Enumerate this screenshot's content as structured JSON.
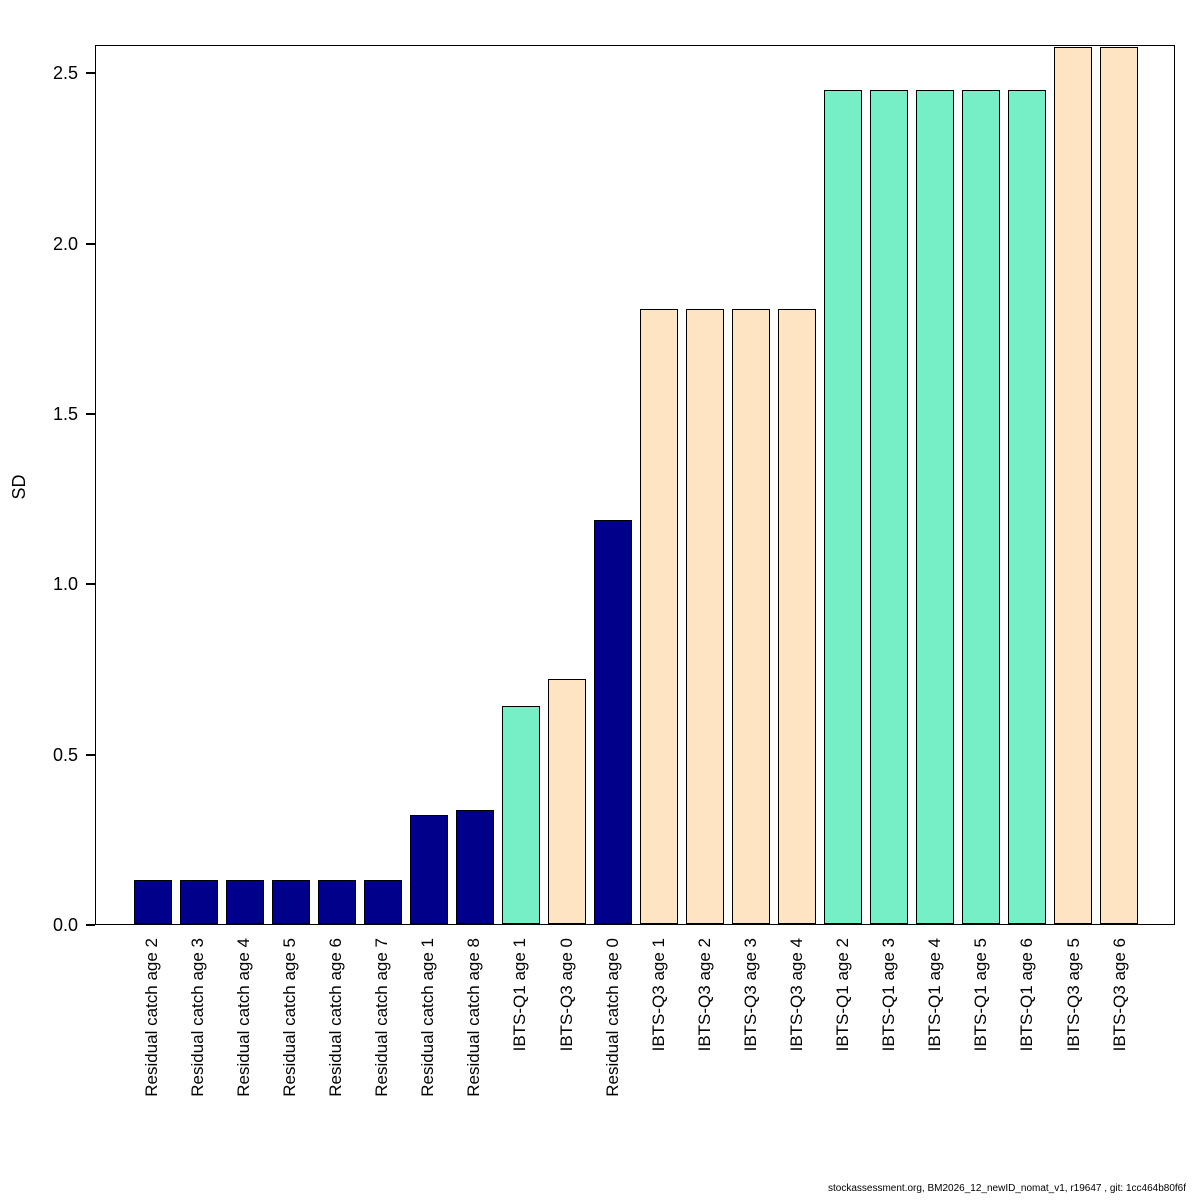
{
  "chart_data": {
    "type": "bar",
    "title": "",
    "ylabel": "SD",
    "xlabel": "",
    "ylim": [
      0,
      2.583
    ],
    "yticks": [
      0,
      0.5,
      1,
      1.5,
      2,
      2.5
    ],
    "grid": false,
    "legend_position": "none",
    "categories": [
      "Residual catch age 2",
      "Residual catch age 3",
      "Residual catch age 4",
      "Residual catch age 5",
      "Residual catch age 6",
      "Residual catch age 7",
      "Residual catch age 1",
      "Residual catch age 8",
      "IBTS-Q1 age 1",
      "IBTS-Q3 age 0",
      "Residual catch age 0",
      "IBTS-Q3 age 1",
      "IBTS-Q3 age 2",
      "IBTS-Q3 age 3",
      "IBTS-Q3 age 4",
      "IBTS-Q1 age 2",
      "IBTS-Q1 age 3",
      "IBTS-Q1 age 4",
      "IBTS-Q1 age 5",
      "IBTS-Q1 age 6",
      "IBTS-Q3 age 5",
      "IBTS-Q3 age 6"
    ],
    "values": [
      0.13,
      0.13,
      0.13,
      0.13,
      0.13,
      0.13,
      0.32,
      0.335,
      0.64,
      0.72,
      1.19,
      1.81,
      1.81,
      1.81,
      1.81,
      2.455,
      2.455,
      2.455,
      2.455,
      2.455,
      2.58,
      2.58
    ],
    "groups": [
      "residual_catch",
      "residual_catch",
      "residual_catch",
      "residual_catch",
      "residual_catch",
      "residual_catch",
      "residual_catch",
      "residual_catch",
      "ibts_q1",
      "ibts_q3",
      "residual_catch",
      "ibts_q3",
      "ibts_q3",
      "ibts_q3",
      "ibts_q3",
      "ibts_q1",
      "ibts_q1",
      "ibts_q1",
      "ibts_q1",
      "ibts_q1",
      "ibts_q3",
      "ibts_q3"
    ],
    "colors": {
      "residual_catch": "#00008B",
      "ibts_q1": "#76EEC6",
      "ibts_q3": "#FFE4C4"
    },
    "bar_border_color": "#000000"
  },
  "footer": "stockassessment.org, BM2026_12_newID_nomat_v1, r19647 , git: 1cc464b80f6f"
}
